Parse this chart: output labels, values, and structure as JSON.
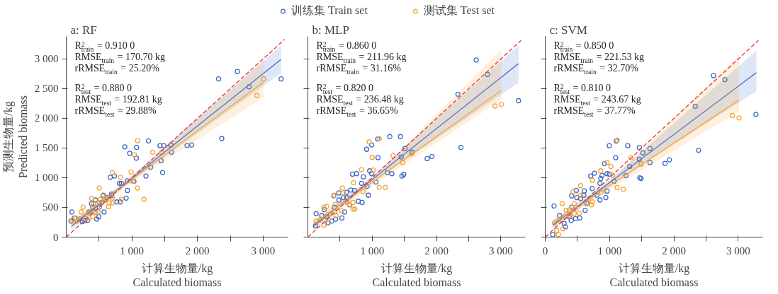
{
  "chart_data": [
    {
      "type": "scatter",
      "title": "a: RF",
      "xlabel": "计算生物量/kg\nCalculated biomass",
      "ylabel": "预测生物量/kg\nPredicted biomass",
      "xlim": [
        0,
        3380
      ],
      "ylim": [
        0,
        3380
      ],
      "xticks": [
        {
          "value": 500,
          "label": null
        },
        {
          "value": 1000,
          "label": "1 000"
        },
        {
          "value": 1500,
          "label": null
        },
        {
          "value": 2000,
          "label": "2 000"
        },
        {
          "value": 2500,
          "label": null
        },
        {
          "value": 3000,
          "label": "3 000"
        }
      ],
      "yticks": [
        0,
        500,
        {
          "value": 1000,
          "label": "1 000"
        },
        {
          "value": 1500,
          "label": "1 500"
        },
        {
          "value": 2000,
          "label": "2 000"
        },
        {
          "value": 2500,
          "label": "2 500"
        },
        {
          "value": 3000,
          "label": "3 000"
        }
      ],
      "grid": false,
      "annotations": [
        "R$^{2}$$_{train}$ = 0.910 0",
        "RMSE$_{train}$ = 170.70 kg",
        "rRMSE$_{train}$ = 25.20%",
        "R$^{2}$$_{test}$ = 0.880 0",
        "RMSE$_{test}$ = 192.81 kg",
        "rRMSE$_{test}$ = 29.88%"
      ],
      "series": [
        {
          "type": "scatter",
          "marker": "circle",
          "color": "#3f6bc6",
          "x": [
            3274,
            2608,
            2322,
            2786,
            2370,
            1842,
            1913,
            1596,
            1604,
            1429,
            1488,
            1445,
            1469,
            1254,
            1286,
            1215,
            1072,
            1068,
            893,
            968,
            1032,
            933,
            913,
            734,
            671,
            810,
            841,
            929,
            822,
            770,
            691,
            691,
            576,
            496,
            464,
            444,
            405,
            345,
            325,
            286,
            246,
            87,
            72,
            127,
            206,
            385,
            544,
            564,
            623,
            504,
            444
          ],
          "values": [
            2664,
            2789,
            2664,
            2531,
            1660,
            1543,
            1551,
            1551,
            1430,
            1539,
            1539,
            1286,
            1088,
            1620,
            1177,
            1028,
            1511,
            1330,
            1519,
            1411,
            939,
            786,
            657,
            1028,
            1008,
            907,
            907,
            947,
            592,
            592,
            725,
            697,
            423,
            343,
            302,
            625,
            504,
            423,
            282,
            282,
            262,
            423,
            270,
            322,
            302,
            564,
            584,
            705,
            665,
            504,
            423
          ]
        },
        {
          "type": "scatter",
          "marker": "circle",
          "color": "#f5a43a",
          "x": [
            3008,
            2905,
            1087,
            1040,
            1317,
            1456,
            702,
            825,
            988,
            1012,
            1087,
            1183,
            841,
            504,
            556,
            389,
            516,
            702,
            702,
            643,
            655,
            413,
            365,
            258,
            226,
            484,
            405,
            345,
            286,
            147,
            95,
            167,
            504,
            603,
            444
          ],
          "values": [
            2664,
            2386,
            1624,
            1386,
            1430,
            1430,
            1088,
            1008,
            1096,
            939,
            826,
            637,
            637,
            826,
            693,
            653,
            633,
            657,
            576,
            512,
            576,
            552,
            423,
            504,
            423,
            423,
            343,
            322,
            310,
            322,
            294,
            270,
            584,
            625,
            423
          ]
        },
        {
          "type": "line",
          "color": "#3f6bc6",
          "x": [
            79,
            1000,
            3274
          ],
          "values": [
            181,
            992,
            2994
          ],
          "lower": [
            130,
            950,
            2761
          ],
          "upper": [
            230,
            1035,
            3226
          ]
        },
        {
          "type": "line",
          "color": "#f5a43a",
          "x": [
            79,
            1000,
            3008
          ],
          "values": [
            222,
            973,
            2611
          ],
          "lower": [
            170,
            925,
            2358
          ],
          "upper": [
            275,
            1020,
            2982
          ]
        },
        {
          "type": "line",
          "color": "#e8303a",
          "line_style": "dashed",
          "x": [
            0,
            3330
          ],
          "values": [
            0,
            3330
          ]
        }
      ]
    },
    {
      "type": "scatter",
      "title": "b: MLP",
      "xlabel": "计算生物量/kg\nCalculated biomass",
      "xlim": [
        0,
        3380
      ],
      "ylim": [
        0,
        3380
      ],
      "tick_labels": "x",
      "legend": "top",
      "xticks": [
        {
          "value": 500,
          "label": null
        },
        {
          "value": 1000,
          "label": "1 000"
        },
        {
          "value": 1500,
          "label": null
        },
        {
          "value": 2000,
          "label": "2 000"
        },
        {
          "value": 2500,
          "label": null
        },
        {
          "value": 3000,
          "label": "3 000"
        }
      ],
      "yticks": [
        {
          "value": 0,
          "label": null
        },
        {
          "value": 500,
          "label": null
        },
        {
          "value": 1000,
          "label": null
        },
        {
          "value": 1500,
          "label": null
        },
        {
          "value": 2000,
          "label": null
        },
        {
          "value": 2500,
          "label": null
        },
        {
          "value": 3000,
          "label": null
        }
      ],
      "grid": false,
      "annotations": [
        "R$^{2}$$_{train}$ = 0.860 0",
        "RMSE$_{train}$ = 211.96 kg",
        "rRMSE$_{train}$ = 31.16%",
        "R$^{2}$$_{test}$ = 0.820 0",
        "RMSE$_{test}$ = 236.48 kg",
        "rRMSE$_{test}$ = 36.65%"
      ],
      "series": [
        {
          "type": "scatter",
          "marker": "circle",
          "name": "训练集 Train set",
          "color": "#3f6bc6",
          "x": [
            2615,
            2791,
            2332,
            3273,
            2379,
            1929,
            1854,
            1619,
            1509,
            1450,
            1438,
            1274,
            1305,
            1235,
            1490,
            1462,
            1090,
            1086,
            992,
            913,
            960,
            992,
            1058,
            941,
            921,
            835,
            862,
            756,
            694,
            725,
            666,
            843,
            784,
            600,
            607,
            552,
            482,
            482,
            404,
            411,
            529,
            431,
            372,
            313,
            255,
            216,
            129,
            118,
            568,
            646,
            294
          ],
          "values": [
            2982,
            2740,
            2406,
            2297,
            1511,
            1358,
            1322,
            1431,
            1491,
            1350,
            1693,
            1693,
            1068,
            1088,
            1056,
            1028,
            1338,
            1652,
            1552,
            1479,
            1116,
            1068,
            927,
            705,
            854,
            907,
            1016,
            1068,
            1060,
            786,
            794,
            584,
            604,
            754,
            665,
            665,
            745,
            625,
            697,
            504,
            322,
            302,
            270,
            242,
            463,
            363,
            395,
            189,
            423,
            544,
            343
          ]
        },
        {
          "type": "scatter",
          "marker": "circle",
          "name": "测试集 Test set",
          "color": "#f5a43a",
          "x": [
            3007,
            2908,
            1109,
            952,
            1000,
            1325,
            1474,
            1611,
            1015,
            835,
            710,
            1109,
            1203,
            858,
            537,
            549,
            411,
            702,
            729,
            702,
            643,
            525,
            427,
            439,
            333,
            294,
            247,
            196,
            129,
            247,
            411,
            607,
            313
          ],
          "values": [
            2237,
            2208,
            1660,
            1604,
            1342,
            1370,
            1257,
            1402,
            1128,
            1136,
            915,
            838,
            838,
            766,
            826,
            745,
            705,
            584,
            472,
            472,
            552,
            443,
            552,
            363,
            383,
            516,
            504,
            294,
            270,
            202,
            423,
            584,
            302
          ]
        },
        {
          "type": "line",
          "color": "#3f6bc6",
          "x": [
            90,
            1000,
            3273
          ],
          "values": [
            189,
            971,
            2922
          ],
          "lower": [
            130,
            920,
            2600
          ],
          "upper": [
            250,
            1020,
            3224
          ]
        },
        {
          "type": "line",
          "color": "#f5a43a",
          "x": [
            90,
            1000,
            3007
          ],
          "values": [
            222,
            924,
            2470
          ],
          "lower": [
            150,
            860,
            2318
          ],
          "upper": [
            290,
            990,
            3164
          ]
        },
        {
          "type": "line",
          "color": "#e8303a",
          "line_style": "dashed",
          "x": [
            0,
            3312
          ],
          "values": [
            0,
            3312
          ]
        }
      ]
    },
    {
      "type": "scatter",
      "title": "c: SVM",
      "xlabel": "计算生物量/kg\nCalculated biomass",
      "xlim": [
        0,
        3380
      ],
      "ylim": [
        0,
        3380
      ],
      "tick_labels": "x",
      "xticks": [
        0,
        {
          "value": 500,
          "label": null
        },
        {
          "value": 1000,
          "label": "1 000"
        },
        {
          "value": 1500,
          "label": null
        },
        {
          "value": 2000,
          "label": "2 000"
        },
        {
          "value": 2500,
          "label": null
        },
        {
          "value": 3000,
          "label": "3 000"
        }
      ],
      "yticks": [
        {
          "value": 0,
          "label": null
        },
        {
          "value": 500,
          "label": null
        },
        {
          "value": 1000,
          "label": null
        },
        {
          "value": 1500,
          "label": null
        },
        {
          "value": 2000,
          "label": null
        },
        {
          "value": 2500,
          "label": null
        },
        {
          "value": 3000,
          "label": null
        }
      ],
      "grid": false,
      "annotations": [
        "R$^{2}$$_{train}$ = 0.850 0",
        "RMSE$_{train}$ = 221.53 kg",
        "rRMSE$_{train}$ = 32.70%",
        "R$^{2}$$_{test}$ = 0.810 0",
        "RMSE$_{test}$ = 243.67 kg",
        "rRMSE$_{test}$ = 37.77%"
      ],
      "series": [
        {
          "type": "scatter",
          "marker": "circle",
          "color": "#3f6bc6",
          "x": [
            2615,
            2791,
            2332,
            3273,
            2383,
            1929,
            1862,
            1627,
            1627,
            1517,
            1462,
            1462,
            1470,
            1490,
            1282,
            1313,
            1254,
            1105,
            1094,
            996,
            921,
            960,
            999,
            1070,
            960,
            941,
            764,
            705,
            882,
            862,
            850,
            850,
            803,
            729,
            607,
            600,
            619,
            549,
            482,
            490,
            411,
            411,
            537,
            470,
            403,
            313,
            223,
            137,
            294,
            118,
            372,
            646
          ],
          "values": [
            2720,
            2652,
            2204,
            2067,
            1463,
            1302,
            1241,
            1257,
            1491,
            1419,
            1511,
            1310,
            999,
            987,
            1539,
            1189,
            1036,
            1620,
            1338,
            1539,
            1237,
            1068,
            1060,
            939,
            774,
            665,
            1076,
            1028,
            1036,
            987,
            907,
            625,
            705,
            818,
            778,
            705,
            451,
            653,
            786,
            665,
            693,
            504,
            322,
            310,
            282,
            173,
            363,
            524,
            230,
            40,
            343,
            564
          ]
        },
        {
          "type": "scatter",
          "marker": "circle",
          "color": "#f5a43a",
          "x": [
            3011,
            2908,
            1117,
            1019,
            960,
            1333,
            1490,
            1047,
            862,
            733,
            1117,
            1215,
            870,
            549,
            549,
            431,
            450,
            733,
            721,
            666,
            263,
            325,
            372,
            529,
            450,
            309,
            216,
            145,
            176,
            204,
            274,
            470,
            392
          ],
          "values": [
            2007,
            2047,
            1632,
            1189,
            1257,
            1338,
            1229,
            1040,
            1116,
            955,
            834,
            806,
            758,
            866,
            705,
            766,
            564,
            592,
            544,
            576,
            564,
            451,
            455,
            403,
            403,
            343,
            294,
            242,
            113,
            44,
            141,
            504,
            363
          ]
        },
        {
          "type": "line",
          "color": "#3f6bc6",
          "x": [
            118,
            1000,
            3281
          ],
          "values": [
            202,
            918,
            2769
          ],
          "lower": [
            140,
            870,
            2458
          ],
          "upper": [
            265,
            965,
            3143
          ]
        },
        {
          "type": "line",
          "color": "#f5a43a",
          "x": [
            118,
            1000,
            3011
          ],
          "values": [
            230,
            864,
            2309
          ],
          "lower": [
            160,
            800,
            2116
          ],
          "upper": [
            300,
            930,
            3063
          ]
        },
        {
          "type": "line",
          "color": "#e8303a",
          "line_style": "dashed",
          "x": [
            0,
            3312
          ],
          "values": [
            0,
            3312
          ]
        }
      ]
    }
  ]
}
